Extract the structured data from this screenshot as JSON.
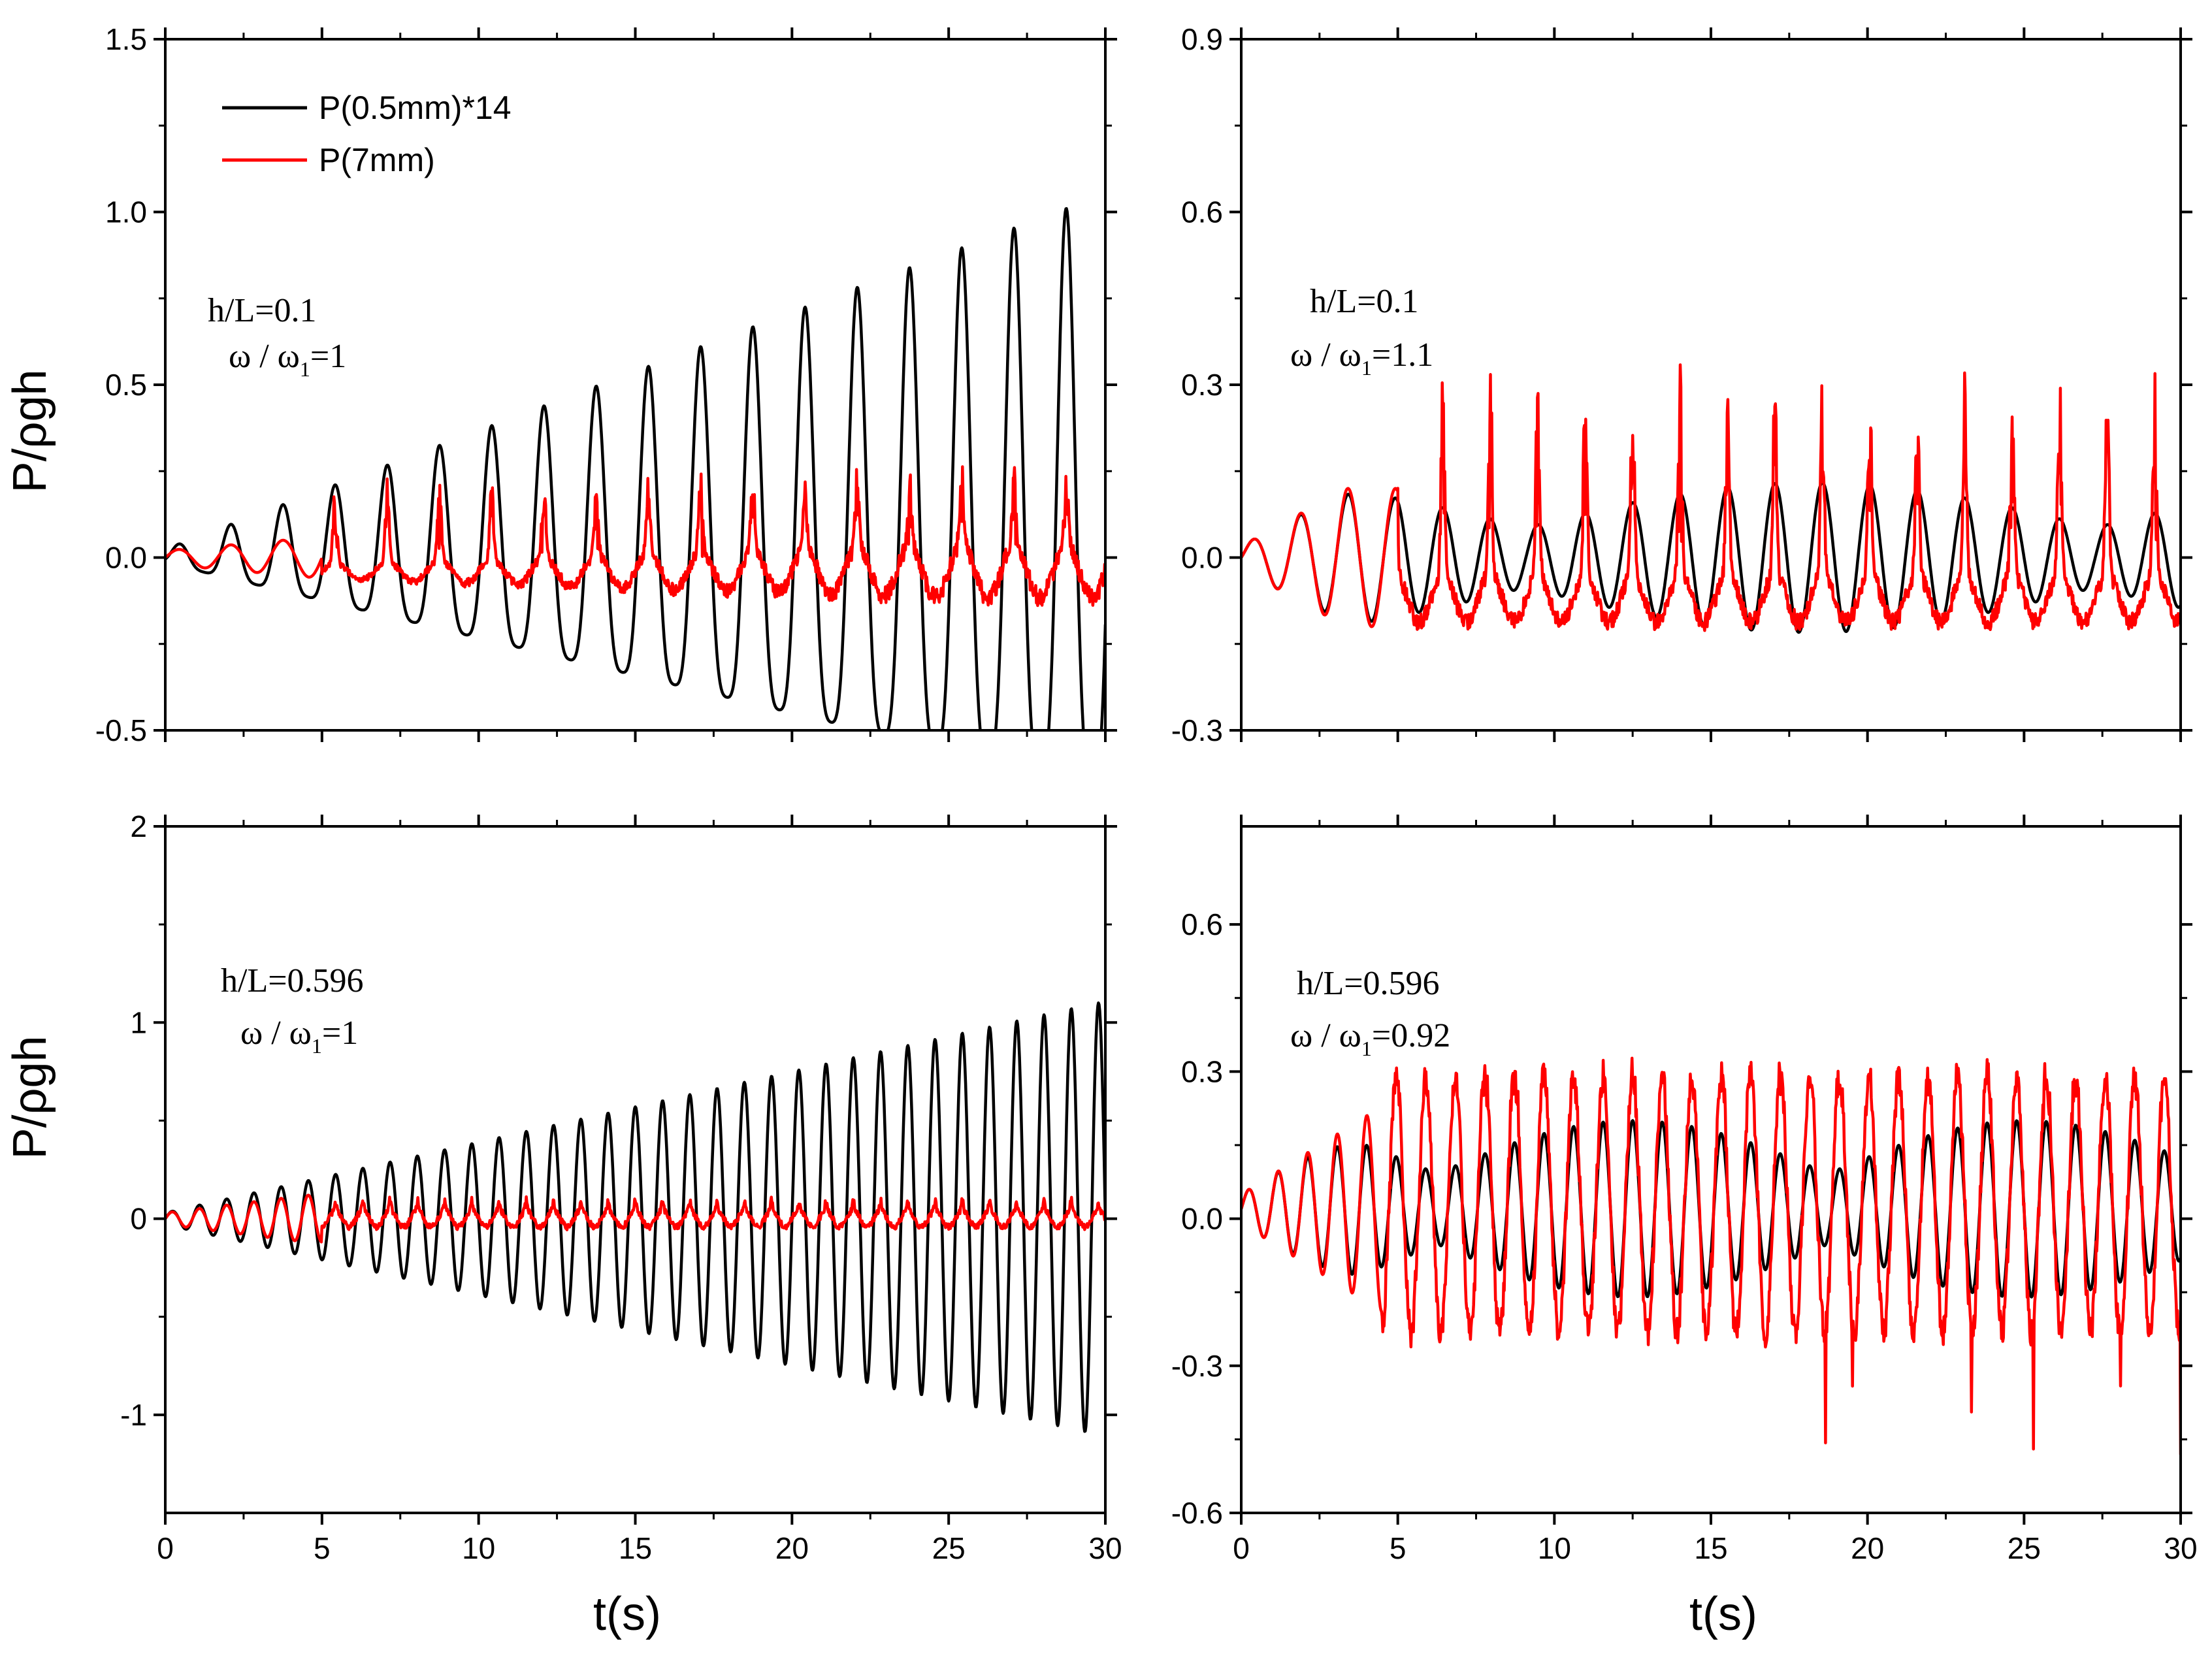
{
  "colors": {
    "black_series": "#000000",
    "red_series": "#ff0000"
  },
  "legend": {
    "series_a": "P(0.5mm)*14",
    "series_b": "P(7mm)"
  },
  "chart_data": [
    {
      "id": "top-left",
      "type": "line",
      "title": "",
      "xlabel": "",
      "ylabel": "P/ρgh",
      "xlim": [
        0,
        30
      ],
      "ylim": [
        -0.5,
        1.5
      ],
      "xticks": [
        0,
        5,
        10,
        15,
        20,
        25,
        30
      ],
      "xtick_labels": [
        "",
        "",
        "",
        "",
        "",
        "",
        ""
      ],
      "yticks": [
        -0.5,
        0.0,
        0.5,
        1.0,
        1.5
      ],
      "ytick_labels": [
        "-0.5",
        "0.0",
        "0.5",
        "1.0",
        "1.5"
      ],
      "annotation": {
        "line1": "h/L=0.1",
        "omega": "ω / ω",
        "sub": "1",
        "ratio": "=1"
      },
      "series": [
        {
          "name": "P(0.5mm)*14",
          "color": "#000000",
          "model": "resonant",
          "freq": 0.6,
          "amp_start": 0.02,
          "amp_growth": 0.028,
          "amp_max": 0.9,
          "asym": 0.45,
          "offset": 0.0
        },
        {
          "name": "P(7mm)",
          "color": "#ff0000",
          "model": "impact",
          "freq": 0.6,
          "amp_start": 0.02,
          "amp_growth": 0.008,
          "amp_max": 0.22,
          "base": -0.04,
          "spike": 0.18,
          "offset": 0.0
        }
      ]
    },
    {
      "id": "top-right",
      "type": "line",
      "title": "",
      "xlabel": "",
      "ylabel": "",
      "xlim": [
        0,
        30
      ],
      "ylim": [
        -0.3,
        0.9
      ],
      "xticks": [
        0,
        5,
        10,
        15,
        20,
        25,
        30
      ],
      "xtick_labels": [
        "",
        "",
        "",
        "",
        "",
        "",
        ""
      ],
      "yticks": [
        -0.3,
        0.0,
        0.3,
        0.6,
        0.9
      ],
      "ytick_labels": [
        "-0.3",
        "0.0",
        "0.3",
        "0.6",
        "0.9"
      ],
      "annotation": {
        "line1": "h/L=0.1",
        "omega": "ω / ω",
        "sub": "1",
        "ratio": "=1.1"
      },
      "series": [
        {
          "name": "P(0.5mm)*14",
          "color": "#000000",
          "model": "beat",
          "freq": 0.66,
          "amp_start": 0.02,
          "amp_growth": 0.03,
          "amp_max": 0.13,
          "beat_freq": 0.055,
          "asym": 0.0,
          "offset": 0.0
        },
        {
          "name": "P(7mm)",
          "color": "#ff0000",
          "model": "impact",
          "freq": 0.66,
          "amp_start": 0.02,
          "amp_growth": 0.03,
          "amp_max": 0.12,
          "base": -0.07,
          "spike": 0.3,
          "offset": 0.0
        }
      ]
    },
    {
      "id": "bottom-left",
      "type": "line",
      "title": "",
      "xlabel": "t(s)",
      "ylabel": "P/ρgh",
      "xlim": [
        0,
        30
      ],
      "ylim": [
        -1.5,
        2.0
      ],
      "xticks": [
        0,
        5,
        10,
        15,
        20,
        25,
        30
      ],
      "xtick_labels": [
        "0",
        "5",
        "10",
        "15",
        "20",
        "25",
        "30"
      ],
      "yticks": [
        -1,
        0,
        1,
        2
      ],
      "ytick_labels": [
        "-1",
        "0",
        "1",
        "2"
      ],
      "annotation": {
        "line1": "h/L=0.596",
        "omega": "ω / ω",
        "sub": "1",
        "ratio": "=1"
      },
      "series": [
        {
          "name": "P(0.5mm)*14",
          "color": "#000000",
          "model": "resonant",
          "freq": 1.15,
          "amp_start": 0.03,
          "amp_growth": 0.036,
          "amp_max": 1.1,
          "asym": 0.0,
          "offset": 0.0
        },
        {
          "name": "P(7mm)",
          "color": "#ff0000",
          "model": "impact",
          "freq": 1.15,
          "amp_start": 0.03,
          "amp_growth": 0.02,
          "amp_max": 0.12,
          "base": 0.0,
          "spike": 0.05,
          "offset": 0.0
        }
      ]
    },
    {
      "id": "bottom-right",
      "type": "line",
      "title": "",
      "xlabel": "t(s)",
      "ylabel": "",
      "xlim": [
        0,
        30
      ],
      "ylim": [
        -0.6,
        0.8
      ],
      "xticks": [
        0,
        5,
        10,
        15,
        20,
        25,
        30
      ],
      "xtick_labels": [
        "0",
        "5",
        "10",
        "15",
        "20",
        "25",
        "30"
      ],
      "yticks": [
        -0.6,
        -0.3,
        0.0,
        0.3,
        0.6
      ],
      "ytick_labels": [
        "-0.6",
        "-0.3",
        "0.0",
        "0.3",
        "0.6"
      ],
      "annotation": {
        "line1": "h/L=0.596",
        "omega": "ω / ω",
        "sub": "1",
        "ratio": "=0.92"
      },
      "series": [
        {
          "name": "P(0.5mm)*14",
          "color": "#000000",
          "model": "beat",
          "freq": 1.06,
          "amp_start": 0.03,
          "amp_growth": 0.04,
          "amp_max": 0.18,
          "beat_freq": 0.08,
          "asym": 0.0,
          "offset": 0.02
        },
        {
          "name": "P(7mm)",
          "color": "#ff0000",
          "model": "noisy",
          "freq": 1.06,
          "amp_start": 0.03,
          "amp_growth": 0.04,
          "amp_max": 0.22,
          "base": 0.0,
          "spike": 0.2,
          "offset": 0.02
        }
      ]
    }
  ]
}
